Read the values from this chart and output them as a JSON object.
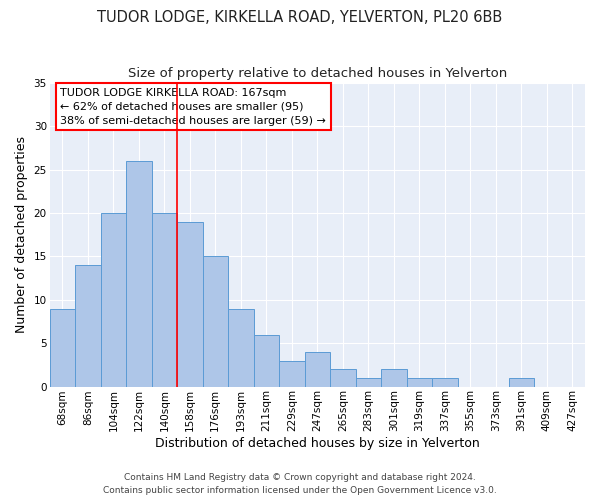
{
  "title_line1": "TUDOR LODGE, KIRKELLA ROAD, YELVERTON, PL20 6BB",
  "title_line2": "Size of property relative to detached houses in Yelverton",
  "xlabel": "Distribution of detached houses by size in Yelverton",
  "ylabel": "Number of detached properties",
  "categories": [
    "68sqm",
    "86sqm",
    "104sqm",
    "122sqm",
    "140sqm",
    "158sqm",
    "176sqm",
    "193sqm",
    "211sqm",
    "229sqm",
    "247sqm",
    "265sqm",
    "283sqm",
    "301sqm",
    "319sqm",
    "337sqm",
    "355sqm",
    "373sqm",
    "391sqm",
    "409sqm",
    "427sqm"
  ],
  "values": [
    9,
    14,
    20,
    26,
    20,
    19,
    15,
    9,
    6,
    3,
    4,
    2,
    1,
    2,
    1,
    1,
    0,
    0,
    1,
    0,
    0
  ],
  "bar_color": "#aec6e8",
  "bar_edgecolor": "#5b9bd5",
  "vline_x": 5.5,
  "vline_color": "red",
  "ylim": [
    0,
    35
  ],
  "yticks": [
    0,
    5,
    10,
    15,
    20,
    25,
    30,
    35
  ],
  "annotation_box_text": "TUDOR LODGE KIRKELLA ROAD: 167sqm\n← 62% of detached houses are smaller (95)\n38% of semi-detached houses are larger (59) →",
  "footer_line1": "Contains HM Land Registry data © Crown copyright and database right 2024.",
  "footer_line2": "Contains public sector information licensed under the Open Government Licence v3.0.",
  "background_color": "#ffffff",
  "plot_bg_color": "#e8eef8",
  "grid_color": "#ffffff",
  "title_fontsize": 10.5,
  "subtitle_fontsize": 9.5,
  "axis_label_fontsize": 9,
  "tick_fontsize": 7.5,
  "annotation_fontsize": 8,
  "footer_fontsize": 6.5
}
